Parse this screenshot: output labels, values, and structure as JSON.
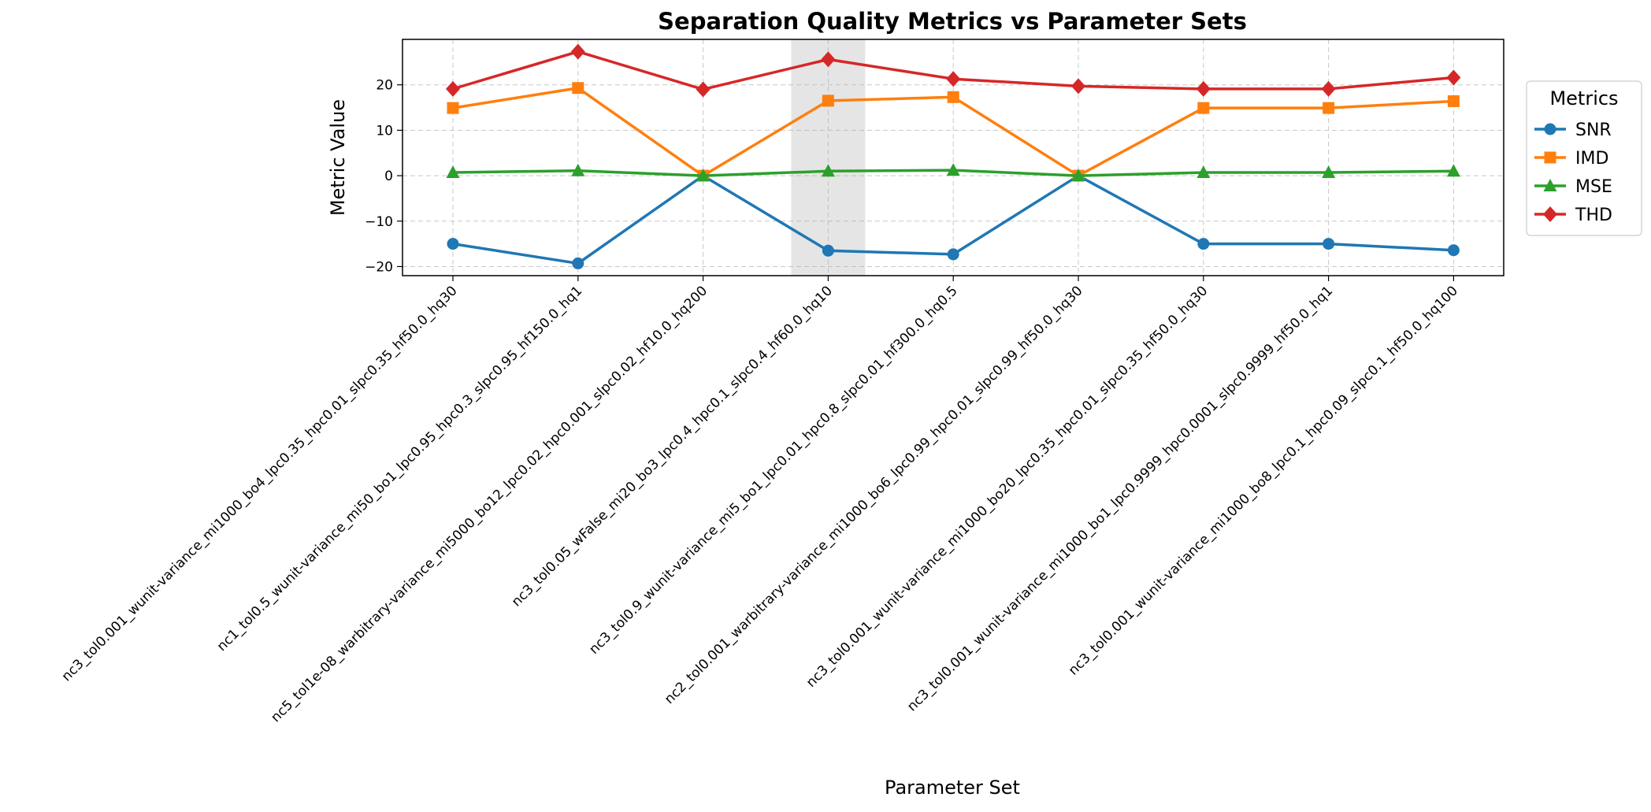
{
  "chart_data": {
    "type": "line",
    "title": "Separation Quality Metrics vs Parameter Sets",
    "xlabel": "Parameter Set",
    "ylabel": "Metric Value",
    "ylim": [
      -22,
      30
    ],
    "yticks": [
      -20,
      -10,
      0,
      10,
      20
    ],
    "grid": true,
    "legend_title": "Metrics",
    "legend_position": "outside-right",
    "highlighted_category": "nc3_tol0.05_wFalse_mi20_bo3_lpc0.4_hpc0.1_slpc0.4_hf60.0_hq10",
    "highlight_color": "#e5e5e5",
    "categories": [
      "nc3_tol0.001_wunit-variance_mi1000_bo4_lpc0.35_hpc0.01_slpc0.35_hf50.0_hq30",
      "nc1_tol0.5_wunit-variance_mi50_bo1_lpc0.95_hpc0.3_slpc0.95_hf150.0_hq1",
      "nc5_tol1e-08_warbitrary-variance_mi5000_bo12_lpc0.02_hpc0.001_slpc0.02_hf10.0_hq200",
      "nc3_tol0.05_wFalse_mi20_bo3_lpc0.4_hpc0.1_slpc0.4_hf60.0_hq10",
      "nc3_tol0.9_wunit-variance_mi5_bo1_lpc0.01_hpc0.8_slpc0.01_hf300.0_hq0.5",
      "nc2_tol0.001_warbitrary-variance_mi1000_bo6_lpc0.99_hpc0.01_slpc0.99_hf50.0_hq30",
      "nc3_tol0.001_wunit-variance_mi1000_bo20_lpc0.35_hpc0.01_slpc0.35_hf50.0_hq30",
      "nc3_tol0.001_wunit-variance_mi1000_bo1_lpc0.9999_hpc0.0001_slpc0.9999_hf50.0_hq1",
      "nc3_tol0.001_wunit-variance_mi1000_bo8_lpc0.1_hpc0.09_slpc0.1_hf50.0_hq100"
    ],
    "series": [
      {
        "name": "SNR",
        "color": "#1f77b4",
        "marker": "circle",
        "values": [
          -15.0,
          -19.3,
          0.0,
          -16.5,
          -17.3,
          0.0,
          -15.0,
          -15.0,
          -16.4
        ]
      },
      {
        "name": "IMD",
        "color": "#ff7f0e",
        "marker": "square",
        "values": [
          14.9,
          19.3,
          0.0,
          16.5,
          17.3,
          0.0,
          14.9,
          14.9,
          16.4
        ]
      },
      {
        "name": "MSE",
        "color": "#2ca02c",
        "marker": "triangle",
        "values": [
          0.7,
          1.1,
          0.0,
          1.0,
          1.2,
          0.0,
          0.7,
          0.7,
          1.0
        ]
      },
      {
        "name": "THD",
        "color": "#d62728",
        "marker": "diamond",
        "values": [
          19.1,
          27.3,
          19.0,
          25.6,
          21.3,
          19.7,
          19.1,
          19.1,
          21.6
        ]
      }
    ]
  }
}
